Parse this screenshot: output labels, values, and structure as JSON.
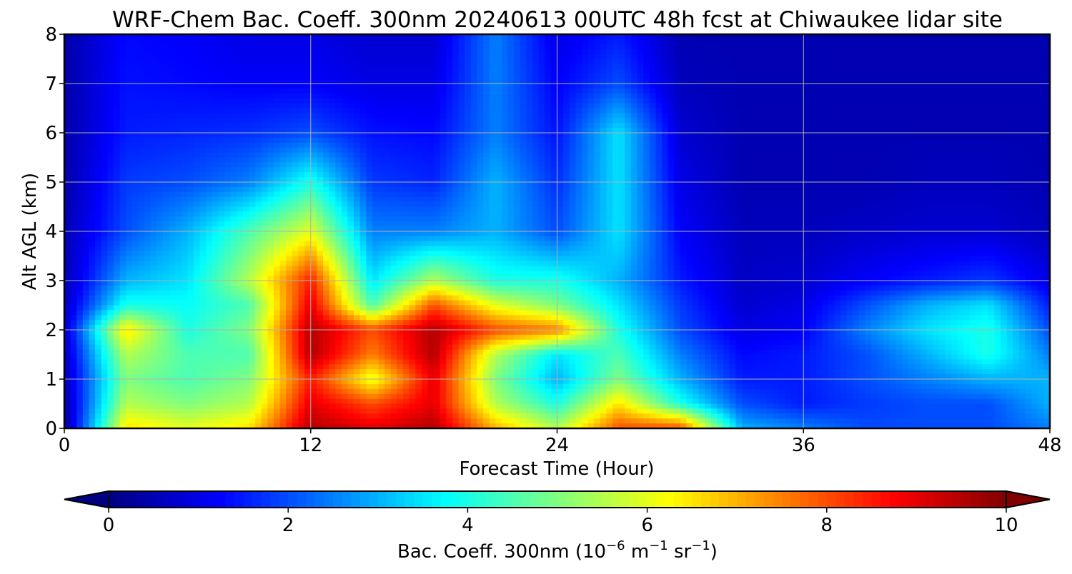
{
  "chart_data": {
    "type": "heatmap",
    "title": "WRF-Chem Bac. Coeff. 300nm  20240613 00UTC 48h fcst at Chiwaukee lidar site",
    "xlabel": "Forecast Time (Hour)",
    "ylabel": "Alt AGL (km)",
    "xlim": [
      0,
      48
    ],
    "ylim": [
      0,
      8
    ],
    "xticks": [
      0,
      12,
      24,
      36,
      48
    ],
    "yticks": [
      0,
      1,
      2,
      3,
      4,
      5,
      6,
      7,
      8
    ],
    "grid": true,
    "colormap": "jet",
    "colorbar": {
      "label_main": "Bac. Coeff. 300nm  (10",
      "label_exp1": "−6",
      "label_mid": " m",
      "label_exp2": "−1",
      "label_end": " sr",
      "label_exp3": "−1",
      "label_close": ")",
      "range": [
        0,
        10
      ],
      "ticks": [
        0,
        2,
        4,
        6,
        8,
        10
      ],
      "extend": "both",
      "orientation": "horizontal",
      "placement": "bottom"
    },
    "x": [
      0,
      3,
      6,
      9,
      12,
      15,
      18,
      21,
      24,
      27,
      30,
      33,
      36,
      39,
      42,
      45,
      48
    ],
    "y": [
      0,
      0.5,
      1,
      1.5,
      2,
      2.5,
      3,
      4,
      5,
      6,
      7,
      8
    ],
    "z": [
      [
        0.2,
        6.5,
        6.0,
        6.5,
        9.5,
        9.0,
        9.5,
        7.0,
        5.5,
        8.0,
        8.0,
        3.0,
        2.5,
        2.0,
        2.0,
        2.0,
        2.5
      ],
      [
        0.3,
        5.5,
        5.0,
        5.5,
        9.0,
        8.0,
        9.0,
        5.5,
        4.0,
        6.5,
        4.0,
        2.0,
        1.5,
        1.8,
        2.0,
        2.0,
        3.0
      ],
      [
        0.5,
        5.0,
        4.5,
        5.0,
        8.5,
        6.0,
        9.0,
        5.0,
        3.0,
        5.0,
        3.0,
        1.5,
        1.5,
        2.0,
        2.5,
        3.0,
        3.0
      ],
      [
        0.6,
        5.5,
        4.5,
        4.5,
        9.5,
        7.5,
        9.5,
        5.5,
        3.5,
        4.5,
        2.5,
        1.3,
        1.5,
        2.0,
        3.0,
        4.0,
        2.5
      ],
      [
        0.7,
        6.5,
        4.0,
        5.0,
        9.5,
        8.0,
        9.5,
        8.0,
        7.5,
        4.0,
        2.0,
        1.0,
        1.2,
        2.5,
        3.5,
        4.0,
        2.0
      ],
      [
        0.6,
        4.0,
        3.8,
        4.5,
        9.0,
        4.5,
        8.0,
        6.0,
        5.0,
        3.5,
        1.8,
        0.8,
        1.0,
        2.0,
        3.0,
        3.5,
        1.5
      ],
      [
        0.5,
        3.0,
        3.5,
        5.5,
        8.5,
        3.5,
        5.5,
        4.0,
        4.0,
        3.0,
        1.5,
        0.7,
        0.8,
        1.2,
        1.5,
        1.8,
        1.0
      ],
      [
        0.5,
        2.0,
        3.0,
        4.5,
        6.0,
        2.5,
        2.5,
        3.0,
        2.0,
        3.5,
        1.2,
        0.6,
        0.6,
        0.7,
        0.8,
        0.8,
        0.6
      ],
      [
        0.4,
        1.8,
        2.0,
        2.5,
        4.0,
        1.8,
        1.6,
        3.0,
        1.7,
        3.5,
        1.0,
        0.5,
        0.5,
        0.5,
        0.6,
        0.6,
        0.5
      ],
      [
        0.4,
        1.5,
        1.6,
        1.7,
        2.0,
        1.4,
        1.3,
        2.5,
        1.4,
        3.5,
        0.8,
        0.5,
        0.5,
        0.5,
        0.5,
        0.5,
        0.5
      ],
      [
        0.4,
        1.4,
        1.3,
        1.2,
        1.2,
        1.0,
        1.0,
        2.5,
        1.2,
        2.0,
        0.6,
        0.5,
        0.5,
        0.5,
        0.5,
        0.5,
        0.5
      ],
      [
        0.4,
        1.3,
        1.2,
        1.0,
        1.0,
        0.8,
        0.8,
        2.5,
        1.0,
        1.5,
        0.5,
        0.5,
        0.5,
        0.5,
        0.5,
        0.5,
        0.5
      ]
    ]
  }
}
